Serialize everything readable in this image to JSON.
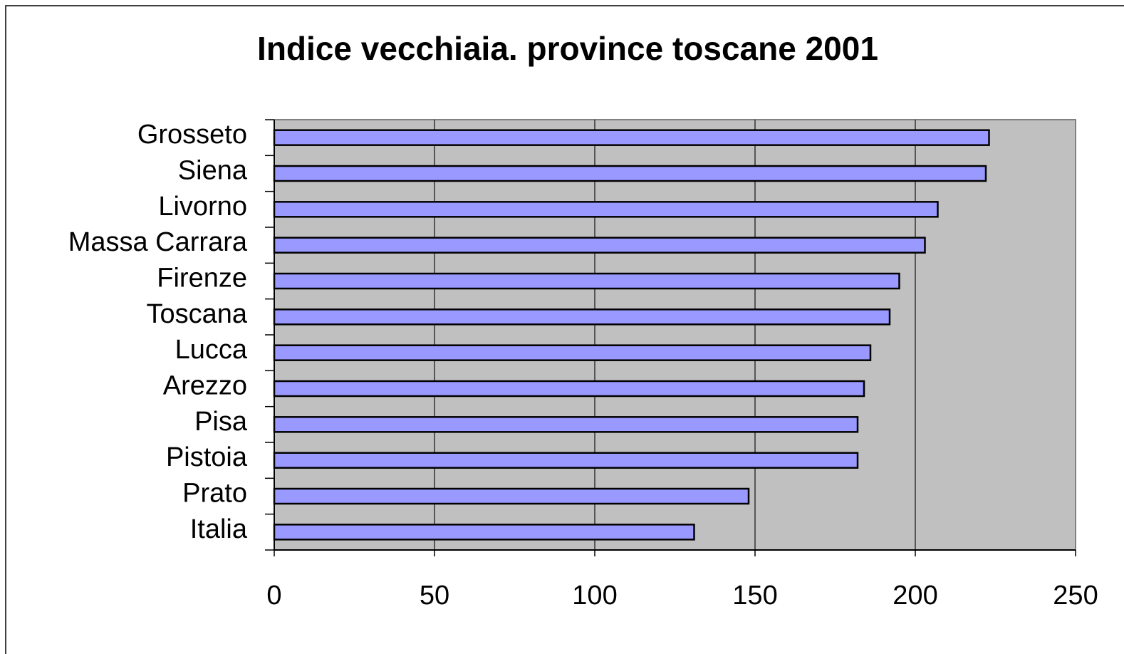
{
  "chart_data": {
    "type": "bar",
    "orientation": "horizontal",
    "title": "Indice vecchiaia. province toscane 2001",
    "categories": [
      "Grosseto",
      "Siena",
      "Livorno",
      "Massa Carrara",
      "Firenze",
      "Toscana",
      "Lucca",
      "Arezzo",
      "Pisa",
      "Pistoia",
      "Prato",
      "Italia"
    ],
    "values": [
      223,
      222,
      207,
      203,
      195,
      192,
      186,
      184,
      182,
      182,
      148,
      131
    ],
    "color": "#9999ff",
    "xlim": [
      0,
      250
    ],
    "xticks": [
      0,
      50,
      100,
      150,
      200,
      250
    ],
    "grid": true
  }
}
